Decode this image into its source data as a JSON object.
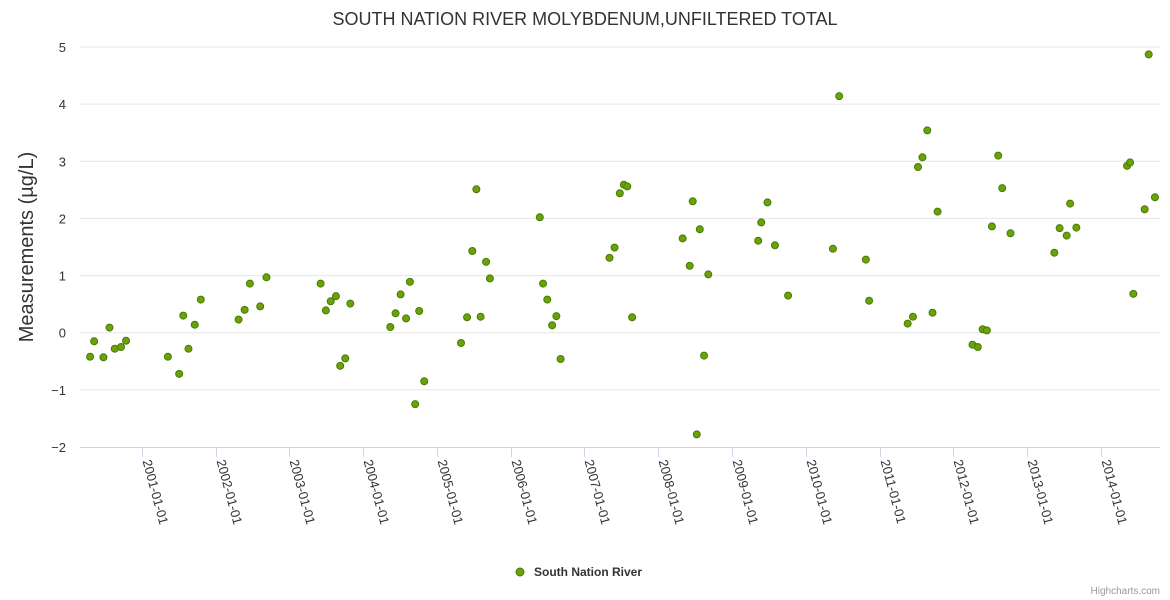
{
  "chart_data": {
    "type": "scatter",
    "title": "SOUTH NATION RIVER MOLYBDENUM,UNFILTERED TOTAL",
    "ylabel": "Measurements (µg/L)",
    "xlabel": "",
    "ylim": [
      -2,
      5
    ],
    "yticks": [
      5,
      4,
      3,
      2,
      1,
      0,
      -1,
      -2
    ],
    "xlim": [
      "2000-03-01",
      "2014-10-20"
    ],
    "xticks": [
      "2001-01-01",
      "2002-01-01",
      "2003-01-01",
      "2004-01-01",
      "2005-01-01",
      "2006-01-01",
      "2007-01-01",
      "2008-01-01",
      "2009-01-01",
      "2010-01-01",
      "2011-01-01",
      "2012-01-01",
      "2013-01-01",
      "2014-01-01"
    ],
    "grid": true,
    "legend_position": "bottom-center",
    "credit": "Highcharts.com",
    "series": [
      {
        "name": "South Nation River",
        "color": "#6aa209",
        "marker_fill": "#6aa209",
        "marker_stroke": "#4a7a06",
        "points": [
          [
            "2000-04-20",
            -0.42
          ],
          [
            "2000-05-10",
            -0.15
          ],
          [
            "2000-06-25",
            -0.43
          ],
          [
            "2000-07-25",
            0.09
          ],
          [
            "2000-08-20",
            -0.28
          ],
          [
            "2000-09-20",
            -0.25
          ],
          [
            "2000-10-15",
            -0.14
          ],
          [
            "2001-05-10",
            -0.42
          ],
          [
            "2001-07-05",
            -0.72
          ],
          [
            "2001-07-25",
            0.3
          ],
          [
            "2001-08-20",
            -0.28
          ],
          [
            "2001-09-20",
            0.14
          ],
          [
            "2001-10-20",
            0.58
          ],
          [
            "2002-04-25",
            0.23
          ],
          [
            "2002-05-25",
            0.4
          ],
          [
            "2002-06-20",
            0.86
          ],
          [
            "2002-08-10",
            0.46
          ],
          [
            "2002-09-10",
            0.97
          ],
          [
            "2003-06-05",
            0.86
          ],
          [
            "2003-07-01",
            0.39
          ],
          [
            "2003-07-25",
            0.55
          ],
          [
            "2003-08-20",
            0.64
          ],
          [
            "2003-09-10",
            -0.58
          ],
          [
            "2003-10-05",
            -0.45
          ],
          [
            "2003-10-30",
            0.51
          ],
          [
            "2004-05-15",
            0.1
          ],
          [
            "2004-06-10",
            0.34
          ],
          [
            "2004-07-05",
            0.67
          ],
          [
            "2004-08-01",
            0.25
          ],
          [
            "2004-08-20",
            0.89
          ],
          [
            "2004-09-15",
            -1.25
          ],
          [
            "2004-10-05",
            0.38
          ],
          [
            "2004-10-30",
            -0.85
          ],
          [
            "2005-04-30",
            -0.18
          ],
          [
            "2005-05-30",
            0.27
          ],
          [
            "2005-06-25",
            1.43
          ],
          [
            "2005-07-15",
            2.51
          ],
          [
            "2005-08-05",
            0.28
          ],
          [
            "2005-09-01",
            1.24
          ],
          [
            "2005-09-20",
            0.95
          ],
          [
            "2006-05-25",
            2.02
          ],
          [
            "2006-06-10",
            0.86
          ],
          [
            "2006-07-01",
            0.58
          ],
          [
            "2006-07-25",
            0.13
          ],
          [
            "2006-08-15",
            0.29
          ],
          [
            "2006-09-05",
            -0.46
          ],
          [
            "2007-05-05",
            1.31
          ],
          [
            "2007-05-30",
            1.49
          ],
          [
            "2007-06-25",
            2.44
          ],
          [
            "2007-07-15",
            2.59
          ],
          [
            "2007-08-01",
            2.56
          ],
          [
            "2007-08-25",
            0.27
          ],
          [
            "2008-05-01",
            1.65
          ],
          [
            "2008-06-05",
            1.17
          ],
          [
            "2008-06-20",
            2.3
          ],
          [
            "2008-07-10",
            -1.78
          ],
          [
            "2008-07-25",
            1.81
          ],
          [
            "2008-08-15",
            -0.4
          ],
          [
            "2008-09-05",
            1.02
          ],
          [
            "2009-05-10",
            1.61
          ],
          [
            "2009-05-25",
            1.93
          ],
          [
            "2009-06-25",
            2.28
          ],
          [
            "2009-08-01",
            1.53
          ],
          [
            "2009-10-05",
            0.65
          ],
          [
            "2010-05-15",
            1.47
          ],
          [
            "2010-06-15",
            4.14
          ],
          [
            "2010-10-25",
            1.28
          ],
          [
            "2010-11-10",
            0.56
          ],
          [
            "2011-05-20",
            0.16
          ],
          [
            "2011-06-15",
            0.28
          ],
          [
            "2011-07-10",
            2.9
          ],
          [
            "2011-08-01",
            3.07
          ],
          [
            "2011-08-25",
            3.54
          ],
          [
            "2011-09-20",
            0.35
          ],
          [
            "2011-10-15",
            2.12
          ],
          [
            "2012-04-05",
            -0.21
          ],
          [
            "2012-05-01",
            -0.25
          ],
          [
            "2012-05-25",
            0.06
          ],
          [
            "2012-06-15",
            0.04
          ],
          [
            "2012-07-10",
            1.86
          ],
          [
            "2012-08-10",
            3.1
          ],
          [
            "2012-08-30",
            2.53
          ],
          [
            "2012-10-10",
            1.74
          ],
          [
            "2013-05-15",
            1.4
          ],
          [
            "2013-06-10",
            1.83
          ],
          [
            "2013-07-15",
            1.7
          ],
          [
            "2013-08-01",
            2.26
          ],
          [
            "2013-09-01",
            1.84
          ],
          [
            "2014-05-10",
            2.92
          ],
          [
            "2014-05-25",
            2.98
          ],
          [
            "2014-06-10",
            0.68
          ],
          [
            "2014-08-05",
            2.16
          ],
          [
            "2014-08-25",
            4.87
          ],
          [
            "2014-09-25",
            2.37
          ]
        ]
      }
    ]
  }
}
